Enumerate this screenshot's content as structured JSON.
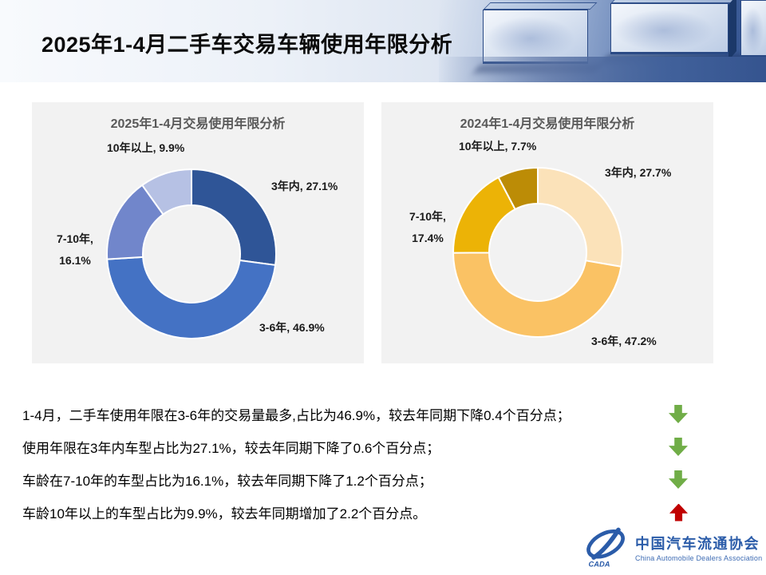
{
  "slide": {
    "title": "2025年1-4月二手车交易车辆使用年限分析"
  },
  "chart_data": [
    {
      "type": "pie",
      "subtype": "donut",
      "title": "2025年1-4月交易使用年限分析",
      "unit": "percent",
      "legend_position": "none",
      "labels_outside": true,
      "segments": [
        {
          "label": "3年内",
          "value": 27.1,
          "color": "#2F5597",
          "display": "3年内, 27.1%"
        },
        {
          "label": "3-6年",
          "value": 46.9,
          "color": "#4472C4",
          "display": "3-6年, 46.9%"
        },
        {
          "label": "7-10年",
          "value": 16.1,
          "color": "#7186CB",
          "display_line1": "7-10年,",
          "display_line2": "16.1%"
        },
        {
          "label": "10年以上",
          "value": 9.9,
          "color": "#B6C1E4",
          "display": "10年以上, 9.9%"
        }
      ]
    },
    {
      "type": "pie",
      "subtype": "donut",
      "title": "2024年1-4月交易使用年限分析",
      "unit": "percent",
      "legend_position": "none",
      "labels_outside": true,
      "segments": [
        {
          "label": "3年内",
          "value": 27.7,
          "color": "#FBE2B9",
          "display": "3年内, 27.7%"
        },
        {
          "label": "3-6年",
          "value": 47.2,
          "color": "#FAC264",
          "display": "3-6年, 47.2%"
        },
        {
          "label": "7-10年",
          "value": 17.4,
          "color": "#ECB306",
          "display_line1": "7-10年,",
          "display_line2": "17.4%"
        },
        {
          "label": "10年以上",
          "value": 7.7,
          "color": "#BC8C06",
          "display": "10年以上, 7.7%"
        }
      ]
    }
  ],
  "summary": {
    "lines": [
      {
        "text": "1-4月，二手车使用年限在3-6年的交易量最多,占比为46.9%，较去年同期下降0.4个百分点；",
        "trend": "down"
      },
      {
        "text": "使用年限在3年内车型占比为27.1%，较去年同期下降了0.6个百分点；",
        "trend": "down"
      },
      {
        "text": "车龄在7-10年的车型占比为16.1%，较去年同期下降了1.2个百分点；",
        "trend": "down"
      },
      {
        "text": "车龄10年以上的车型占比为9.9%，较去年同期增加了2.2个百分点。",
        "trend": "up"
      }
    ],
    "trend_colors": {
      "up": "#C00000",
      "down": "#70AD47"
    }
  },
  "logo": {
    "badge": "CADA",
    "name_cn": "中国汽车流通协会",
    "name_en": "China Automobile Dealers Association",
    "color": "#2B5CA9"
  },
  "theme": {
    "panel_bg": "#F2F2F2",
    "chart_title_color": "#595959",
    "label_color": "#1A1A1A",
    "header_blue": "#3A5A96",
    "title_color": "#0B0B0B"
  }
}
